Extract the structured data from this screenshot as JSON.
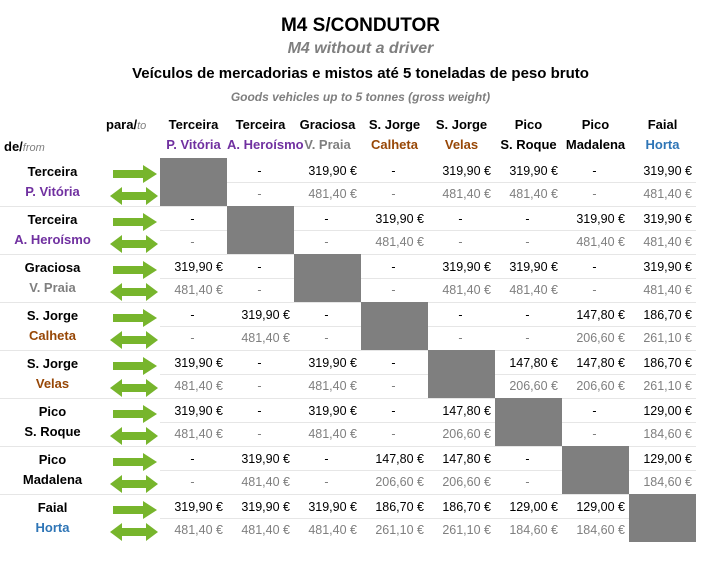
{
  "header": {
    "title": "M4 S/CONDUTOR",
    "subtitle": "M4 without a driver",
    "heading": "Veículos de mercadorias e mistos até 5 toneladas de peso bruto",
    "subheading": "Goods vehicles up to 5 tonnes (gross weight)"
  },
  "corner": {
    "to_label": "para/",
    "to_label_en": "to",
    "from_label": "de/",
    "from_label_en": "from"
  },
  "locations": [
    {
      "island": "Terceira",
      "port": "P. Vitória",
      "color": "#7030a0"
    },
    {
      "island": "Terceira",
      "port": "A. Heroísmo",
      "color": "#7030a0"
    },
    {
      "island": "Graciosa",
      "port": "V. Praia",
      "color": "#7f7f7f"
    },
    {
      "island": "S. Jorge",
      "port": "Calheta",
      "color": "#974706"
    },
    {
      "island": "S. Jorge",
      "port": "Velas",
      "color": "#974706"
    },
    {
      "island": "Pico",
      "port": "S. Roque",
      "color": "#000000"
    },
    {
      "island": "Pico",
      "port": "Madalena",
      "color": "#000000"
    },
    {
      "island": "Faial",
      "port": "Horta",
      "color": "#2e75b6"
    }
  ],
  "table": {
    "rows": [
      [
        null,
        {
          "one_way": "-",
          "return": "-"
        },
        {
          "one_way": "319,90 €",
          "return": "481,40 €"
        },
        {
          "one_way": "-",
          "return": "-"
        },
        {
          "one_way": "319,90 €",
          "return": "481,40 €"
        },
        {
          "one_way": "319,90 €",
          "return": "481,40 €"
        },
        {
          "one_way": "-",
          "return": "-"
        },
        {
          "one_way": "319,90 €",
          "return": "481,40 €"
        }
      ],
      [
        {
          "one_way": "-",
          "return": "-"
        },
        null,
        {
          "one_way": "-",
          "return": "-"
        },
        {
          "one_way": "319,90 €",
          "return": "481,40 €"
        },
        {
          "one_way": "-",
          "return": "-"
        },
        {
          "one_way": "-",
          "return": "-"
        },
        {
          "one_way": "319,90 €",
          "return": "481,40 €"
        },
        {
          "one_way": "319,90 €",
          "return": "481,40 €"
        }
      ],
      [
        {
          "one_way": "319,90 €",
          "return": "481,40 €"
        },
        {
          "one_way": "-",
          "return": "-"
        },
        null,
        {
          "one_way": "-",
          "return": "-"
        },
        {
          "one_way": "319,90 €",
          "return": "481,40 €"
        },
        {
          "one_way": "319,90 €",
          "return": "481,40 €"
        },
        {
          "one_way": "-",
          "return": "-"
        },
        {
          "one_way": "319,90 €",
          "return": "481,40 €"
        }
      ],
      [
        {
          "one_way": "-",
          "return": "-"
        },
        {
          "one_way": "319,90 €",
          "return": "481,40 €"
        },
        {
          "one_way": "-",
          "return": "-"
        },
        null,
        {
          "one_way": "-",
          "return": "-"
        },
        {
          "one_way": "-",
          "return": "-"
        },
        {
          "one_way": "147,80 €",
          "return": "206,60 €"
        },
        {
          "one_way": "186,70 €",
          "return": "261,10 €"
        }
      ],
      [
        {
          "one_way": "319,90 €",
          "return": "481,40 €"
        },
        {
          "one_way": "-",
          "return": "-"
        },
        {
          "one_way": "319,90 €",
          "return": "481,40 €"
        },
        {
          "one_way": "-",
          "return": "-"
        },
        null,
        {
          "one_way": "147,80 €",
          "return": "206,60 €"
        },
        {
          "one_way": "147,80 €",
          "return": "206,60 €"
        },
        {
          "one_way": "186,70 €",
          "return": "261,10 €"
        }
      ],
      [
        {
          "one_way": "319,90 €",
          "return": "481,40 €"
        },
        {
          "one_way": "-",
          "return": "-"
        },
        {
          "one_way": "319,90 €",
          "return": "481,40 €"
        },
        {
          "one_way": "-",
          "return": "-"
        },
        {
          "one_way": "147,80 €",
          "return": "206,60 €"
        },
        null,
        {
          "one_way": "-",
          "return": "-"
        },
        {
          "one_way": "129,00 €",
          "return": "184,60 €"
        }
      ],
      [
        {
          "one_way": "-",
          "return": "-"
        },
        {
          "one_way": "319,90 €",
          "return": "481,40 €"
        },
        {
          "one_way": "-",
          "return": "-"
        },
        {
          "one_way": "147,80 €",
          "return": "206,60 €"
        },
        {
          "one_way": "147,80 €",
          "return": "206,60 €"
        },
        {
          "one_way": "-",
          "return": "-"
        },
        null,
        {
          "one_way": "129,00 €",
          "return": "184,60 €"
        }
      ],
      [
        {
          "one_way": "319,90 €",
          "return": "481,40 €"
        },
        {
          "one_way": "319,90 €",
          "return": "481,40 €"
        },
        {
          "one_way": "319,90 €",
          "return": "481,40 €"
        },
        {
          "one_way": "186,70 €",
          "return": "261,10 €"
        },
        {
          "one_way": "186,70 €",
          "return": "261,10 €"
        },
        {
          "one_way": "129,00 €",
          "return": "184,60 €"
        },
        {
          "one_way": "129,00 €",
          "return": "184,60 €"
        },
        null
      ]
    ]
  }
}
